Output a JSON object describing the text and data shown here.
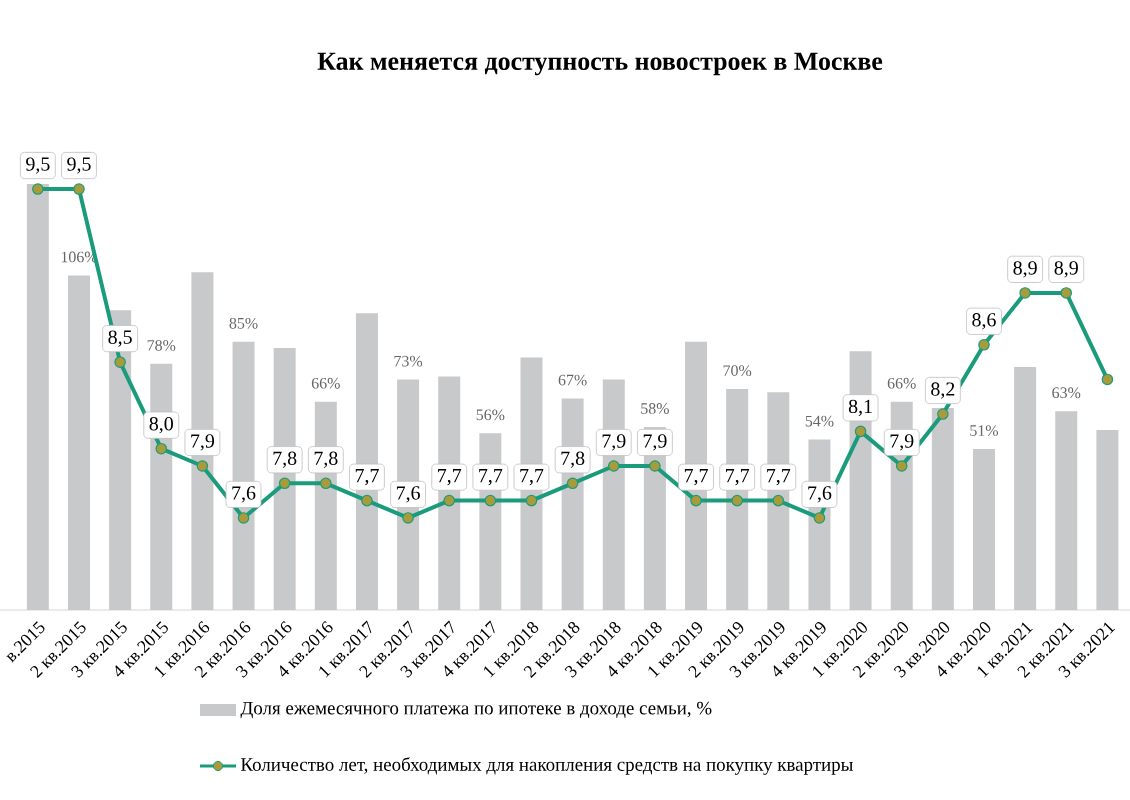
{
  "chart_data": {
    "type": "bar",
    "title": "Как меняется доступность новостроек в Москве",
    "categories": [
      "в.2015",
      "2 кв.2015",
      "3 кв.2015",
      "4 кв.2015",
      "1 кв.2016",
      "2 кв.2016",
      "3 кв.2016",
      "4 кв.2016",
      "1 кв.2017",
      "2 кв.2017",
      "3 кв.2017",
      "4 кв.2017",
      "1 кв.2018",
      "2 кв.2018",
      "3 кв.2018",
      "4 кв.2018",
      "1 кв.2019",
      "2 кв.2019",
      "3 кв.2019",
      "4 кв.2019",
      "1 кв.2020",
      "2 кв.2020",
      "3 кв.2020",
      "4 кв.2020",
      "1 кв.2021",
      "2 кв.2021",
      "3 кв.2021"
    ],
    "series": [
      {
        "name": "Доля ежемесячного платежа по ипотеке в доходе семьи, %",
        "color": "#c8c9cb",
        "values": [
          135,
          106,
          95,
          78,
          107,
          85,
          83,
          66,
          94,
          73,
          74,
          56,
          80,
          67,
          73,
          58,
          85,
          70,
          69,
          54,
          82,
          66,
          64,
          51,
          77,
          63,
          57
        ],
        "value_labels": [
          null,
          "106%",
          null,
          "78%",
          null,
          "85%",
          null,
          "66%",
          null,
          "73%",
          null,
          "56%",
          null,
          "67%",
          null,
          "58%",
          null,
          "70%",
          null,
          "54%",
          null,
          "66%",
          null,
          "51%",
          null,
          "63%",
          null
        ]
      },
      {
        "name": "Количество лет, необходимых для накопления средств на покупку квартиры",
        "type": "line",
        "axis": "y2",
        "color": "#1a9c7c",
        "values": [
          9.5,
          9.5,
          8.5,
          8.0,
          7.9,
          7.6,
          7.8,
          7.8,
          7.7,
          7.6,
          7.7,
          7.7,
          7.7,
          7.8,
          7.9,
          7.9,
          7.7,
          7.7,
          7.7,
          7.6,
          8.1,
          7.9,
          8.2,
          8.6,
          8.9,
          8.9,
          8.4
        ],
        "value_labels": [
          "9,5",
          "9,5",
          "8,5",
          "8,0",
          "7,9",
          "7,6",
          "7,8",
          "7,8",
          "7,7",
          "7,6",
          "7,7",
          "7,7",
          "7,7",
          "7,8",
          "7,9",
          "7,9",
          "7,7",
          "7,7",
          "7,7",
          "7,6",
          "8,1",
          "7,9",
          "8,2",
          "8,6",
          "8,9",
          "8,9",
          null
        ]
      }
    ],
    "marker": "circle",
    "line_style": "solid",
    "legend": "bottom",
    "tick_labels": "x"
  }
}
